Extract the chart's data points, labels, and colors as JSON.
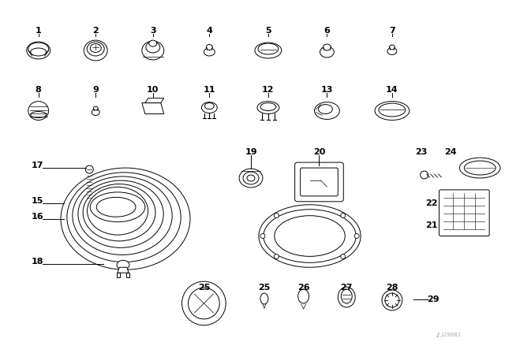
{
  "background_color": "#ffffff",
  "line_color": "#000000",
  "fig_width": 6.4,
  "fig_height": 4.48,
  "dpi": 100,
  "watermark": "JJ J296B1"
}
